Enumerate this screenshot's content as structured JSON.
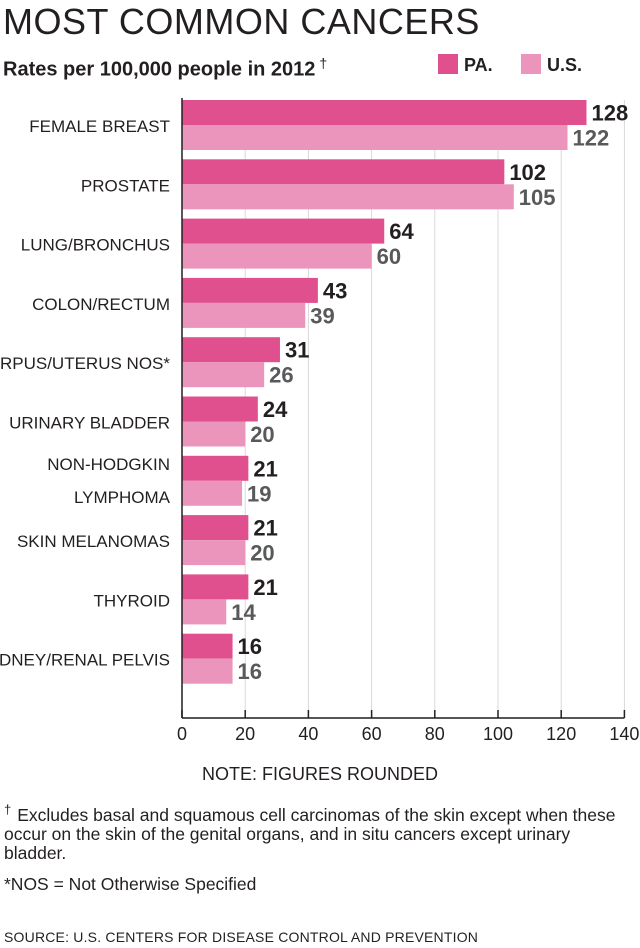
{
  "header": {
    "title": "MOST COMMON CANCERS",
    "subtitle": "Rates per 100,000 people in 2012",
    "subtitle_mark": "†"
  },
  "colors": {
    "pa": "#e0508e",
    "us": "#eb94bc",
    "gridline": "#d9d9d9",
    "axis": "#231f20",
    "pa_label": "#231f20",
    "us_label": "#58595b"
  },
  "chart_data": {
    "type": "bar",
    "orientation": "horizontal",
    "title": "MOST COMMON CANCERS",
    "subtitle": "Rates per 100,000 people in 2012 †",
    "legend": {
      "placement": "top-right",
      "entries": [
        "PA.",
        "U.S."
      ]
    },
    "categories": [
      [
        "FEMALE BREAST"
      ],
      [
        "PROSTATE"
      ],
      [
        "LUNG/BRONCHUS"
      ],
      [
        "COLON/RECTUM"
      ],
      [
        "CORPUS/UTERUS NOS*"
      ],
      [
        "URINARY BLADDER"
      ],
      [
        "NON-HODGKIN",
        "LYMPHOMA"
      ],
      [
        "SKIN MELANOMAS"
      ],
      [
        "THYROID"
      ],
      [
        "KIDNEY/RENAL PELVIS"
      ]
    ],
    "series": [
      {
        "name": "PA.",
        "values": [
          128,
          102,
          64,
          43,
          31,
          24,
          21,
          21,
          21,
          16
        ]
      },
      {
        "name": "U.S.",
        "values": [
          122,
          105,
          60,
          39,
          26,
          20,
          19,
          20,
          14,
          16
        ]
      }
    ],
    "xlim": [
      0,
      140
    ],
    "xticks": [
      0,
      20,
      40,
      60,
      80,
      100,
      120,
      140
    ],
    "grid": true
  },
  "notes": {
    "rounded": "NOTE: FIGURES ROUNDED",
    "footnote_mark": "†",
    "footnote": "Excludes basal and squamous cell carcinomas of the skin except when these occur on the skin of the genital organs, and in situ cancers except urinary bladder.",
    "nos": "*NOS = Not Otherwise Specified",
    "source": "SOURCE:  U.S. CENTERS FOR DISEASE CONTROL AND PREVENTION"
  }
}
